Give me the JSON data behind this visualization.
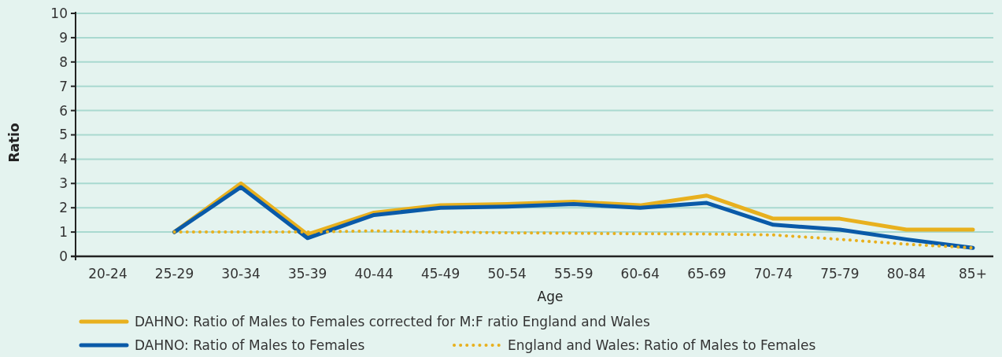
{
  "chart_data": {
    "type": "line",
    "xlabel": "Age",
    "ylabel": "Ratio",
    "categories": [
      "20-24",
      "25-29",
      "30-34",
      "35-39",
      "40-44",
      "45-49",
      "50-54",
      "55-59",
      "60-64",
      "65-69",
      "70-74",
      "75-79",
      "80-84",
      "85+"
    ],
    "series": [
      {
        "name": "DAHNO: Ratio of Males to Females corrected for M:F ratio England and Wales",
        "color": "#e8b01e",
        "line_style": "solid",
        "values": [
          null,
          1.0,
          3.0,
          0.9,
          1.8,
          2.1,
          2.15,
          2.25,
          2.1,
          2.5,
          1.55,
          1.55,
          1.1,
          1.1
        ]
      },
      {
        "name": "DAHNO: Ratio of Males to Females",
        "color": "#0a5aa8",
        "line_style": "solid",
        "values": [
          null,
          1.0,
          2.85,
          0.75,
          1.7,
          2.0,
          2.05,
          2.15,
          2.0,
          2.2,
          1.3,
          1.1,
          0.7,
          0.35
        ]
      },
      {
        "name": "England and Wales: Ratio of Males to Females",
        "color": "#e8b01e",
        "line_style": "dotted",
        "values": [
          null,
          1.0,
          1.0,
          1.0,
          1.05,
          1.0,
          0.97,
          0.95,
          0.93,
          0.92,
          0.88,
          0.7,
          0.5,
          0.35
        ]
      }
    ],
    "ylim": [
      0,
      10
    ],
    "yticks": [
      0,
      1,
      2,
      3,
      4,
      5,
      6,
      7,
      8,
      9,
      10
    ],
    "grid": "y",
    "legend": "bottom",
    "marker": "none"
  }
}
